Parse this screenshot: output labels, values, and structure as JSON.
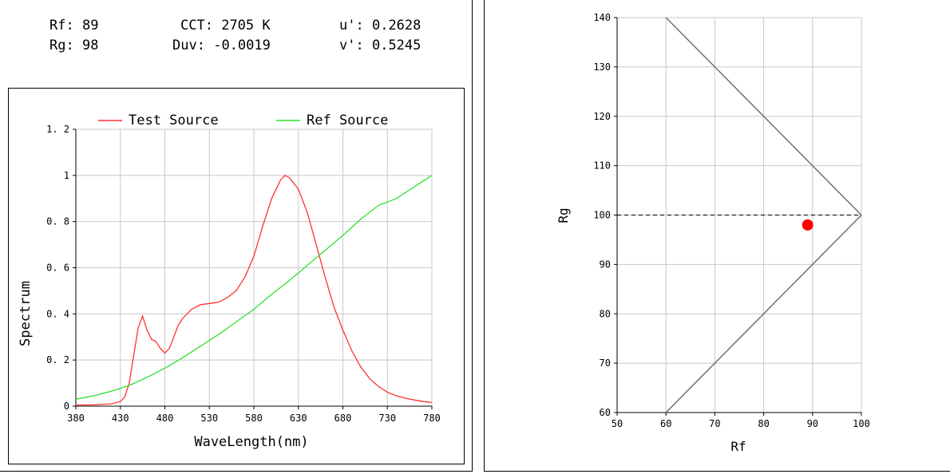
{
  "metrics": {
    "rf": {
      "label": "Rf:",
      "value": "89"
    },
    "rg": {
      "label": "Rg:",
      "value": "98"
    },
    "cct": {
      "label": "CCT:",
      "value": "2705 K"
    },
    "duv": {
      "label": "Duv:",
      "value": "-0.0019"
    },
    "u_prime": {
      "label": "u':",
      "value": "0.2628"
    },
    "v_prime": {
      "label": "v':",
      "value": "0.5245"
    }
  },
  "chart_data": [
    {
      "type": "line",
      "xlabel": "WaveLength(nm)",
      "ylabel": "Spectrum",
      "xlim": [
        380,
        780
      ],
      "ylim": [
        0,
        1.2
      ],
      "x_ticks": [
        380,
        430,
        480,
        530,
        580,
        630,
        680,
        730,
        780
      ],
      "y_ticks": [
        0,
        0.2,
        0.4,
        0.6,
        0.8,
        1,
        1.2
      ],
      "y_tick_labels": [
        "0",
        "0. 2",
        "0. 4",
        "0. 6",
        "0. 8",
        "1",
        "1. 2"
      ],
      "grid": true,
      "legend": "top",
      "series": [
        {
          "name": "Test Source",
          "color": "#ff3030",
          "points": [
            [
              380,
              0.005
            ],
            [
              400,
              0.006
            ],
            [
              420,
              0.01
            ],
            [
              430,
              0.02
            ],
            [
              435,
              0.04
            ],
            [
              440,
              0.1
            ],
            [
              445,
              0.22
            ],
            [
              450,
              0.34
            ],
            [
              455,
              0.39
            ],
            [
              460,
              0.33
            ],
            [
              465,
              0.29
            ],
            [
              470,
              0.28
            ],
            [
              475,
              0.25
            ],
            [
              480,
              0.23
            ],
            [
              485,
              0.25
            ],
            [
              490,
              0.3
            ],
            [
              495,
              0.35
            ],
            [
              500,
              0.38
            ],
            [
              510,
              0.42
            ],
            [
              520,
              0.44
            ],
            [
              530,
              0.445
            ],
            [
              540,
              0.45
            ],
            [
              550,
              0.47
            ],
            [
              560,
              0.5
            ],
            [
              570,
              0.56
            ],
            [
              580,
              0.65
            ],
            [
              590,
              0.78
            ],
            [
              600,
              0.9
            ],
            [
              610,
              0.98
            ],
            [
              615,
              1.0
            ],
            [
              620,
              0.99
            ],
            [
              630,
              0.94
            ],
            [
              640,
              0.84
            ],
            [
              650,
              0.7
            ],
            [
              660,
              0.56
            ],
            [
              670,
              0.43
            ],
            [
              680,
              0.33
            ],
            [
              690,
              0.24
            ],
            [
              700,
              0.17
            ],
            [
              710,
              0.12
            ],
            [
              720,
              0.085
            ],
            [
              730,
              0.06
            ],
            [
              740,
              0.045
            ],
            [
              750,
              0.035
            ],
            [
              760,
              0.027
            ],
            [
              770,
              0.02
            ],
            [
              780,
              0.016
            ]
          ]
        },
        {
          "name": "Ref Source",
          "color": "#30e030",
          "points": [
            [
              380,
              0.03
            ],
            [
              400,
              0.045
            ],
            [
              420,
              0.065
            ],
            [
              440,
              0.09
            ],
            [
              460,
              0.125
            ],
            [
              480,
              0.165
            ],
            [
              500,
              0.21
            ],
            [
              520,
              0.26
            ],
            [
              540,
              0.31
            ],
            [
              560,
              0.365
            ],
            [
              580,
              0.42
            ],
            [
              600,
              0.485
            ],
            [
              620,
              0.545
            ],
            [
              640,
              0.61
            ],
            [
              660,
              0.675
            ],
            [
              680,
              0.74
            ],
            [
              700,
              0.81
            ],
            [
              720,
              0.87
            ],
            [
              740,
              0.9
            ],
            [
              760,
              0.95
            ],
            [
              780,
              1.0
            ]
          ]
        }
      ]
    },
    {
      "type": "scatter",
      "xlabel": "Rf",
      "ylabel": "Rg",
      "xlim": [
        50,
        100
      ],
      "ylim": [
        60,
        140
      ],
      "x_ticks": [
        50,
        60,
        70,
        80,
        90,
        100
      ],
      "y_ticks": [
        60,
        70,
        80,
        90,
        100,
        110,
        120,
        130,
        140
      ],
      "grid": true,
      "boundary_lines": [
        {
          "from": [
            60,
            140
          ],
          "to": [
            100,
            100
          ]
        },
        {
          "from": [
            60,
            60
          ],
          "to": [
            100,
            100
          ]
        }
      ],
      "reference_line": {
        "y": 100,
        "style": "dashed"
      },
      "point": {
        "x": 89,
        "y": 98,
        "color": "#ff0000"
      }
    }
  ]
}
